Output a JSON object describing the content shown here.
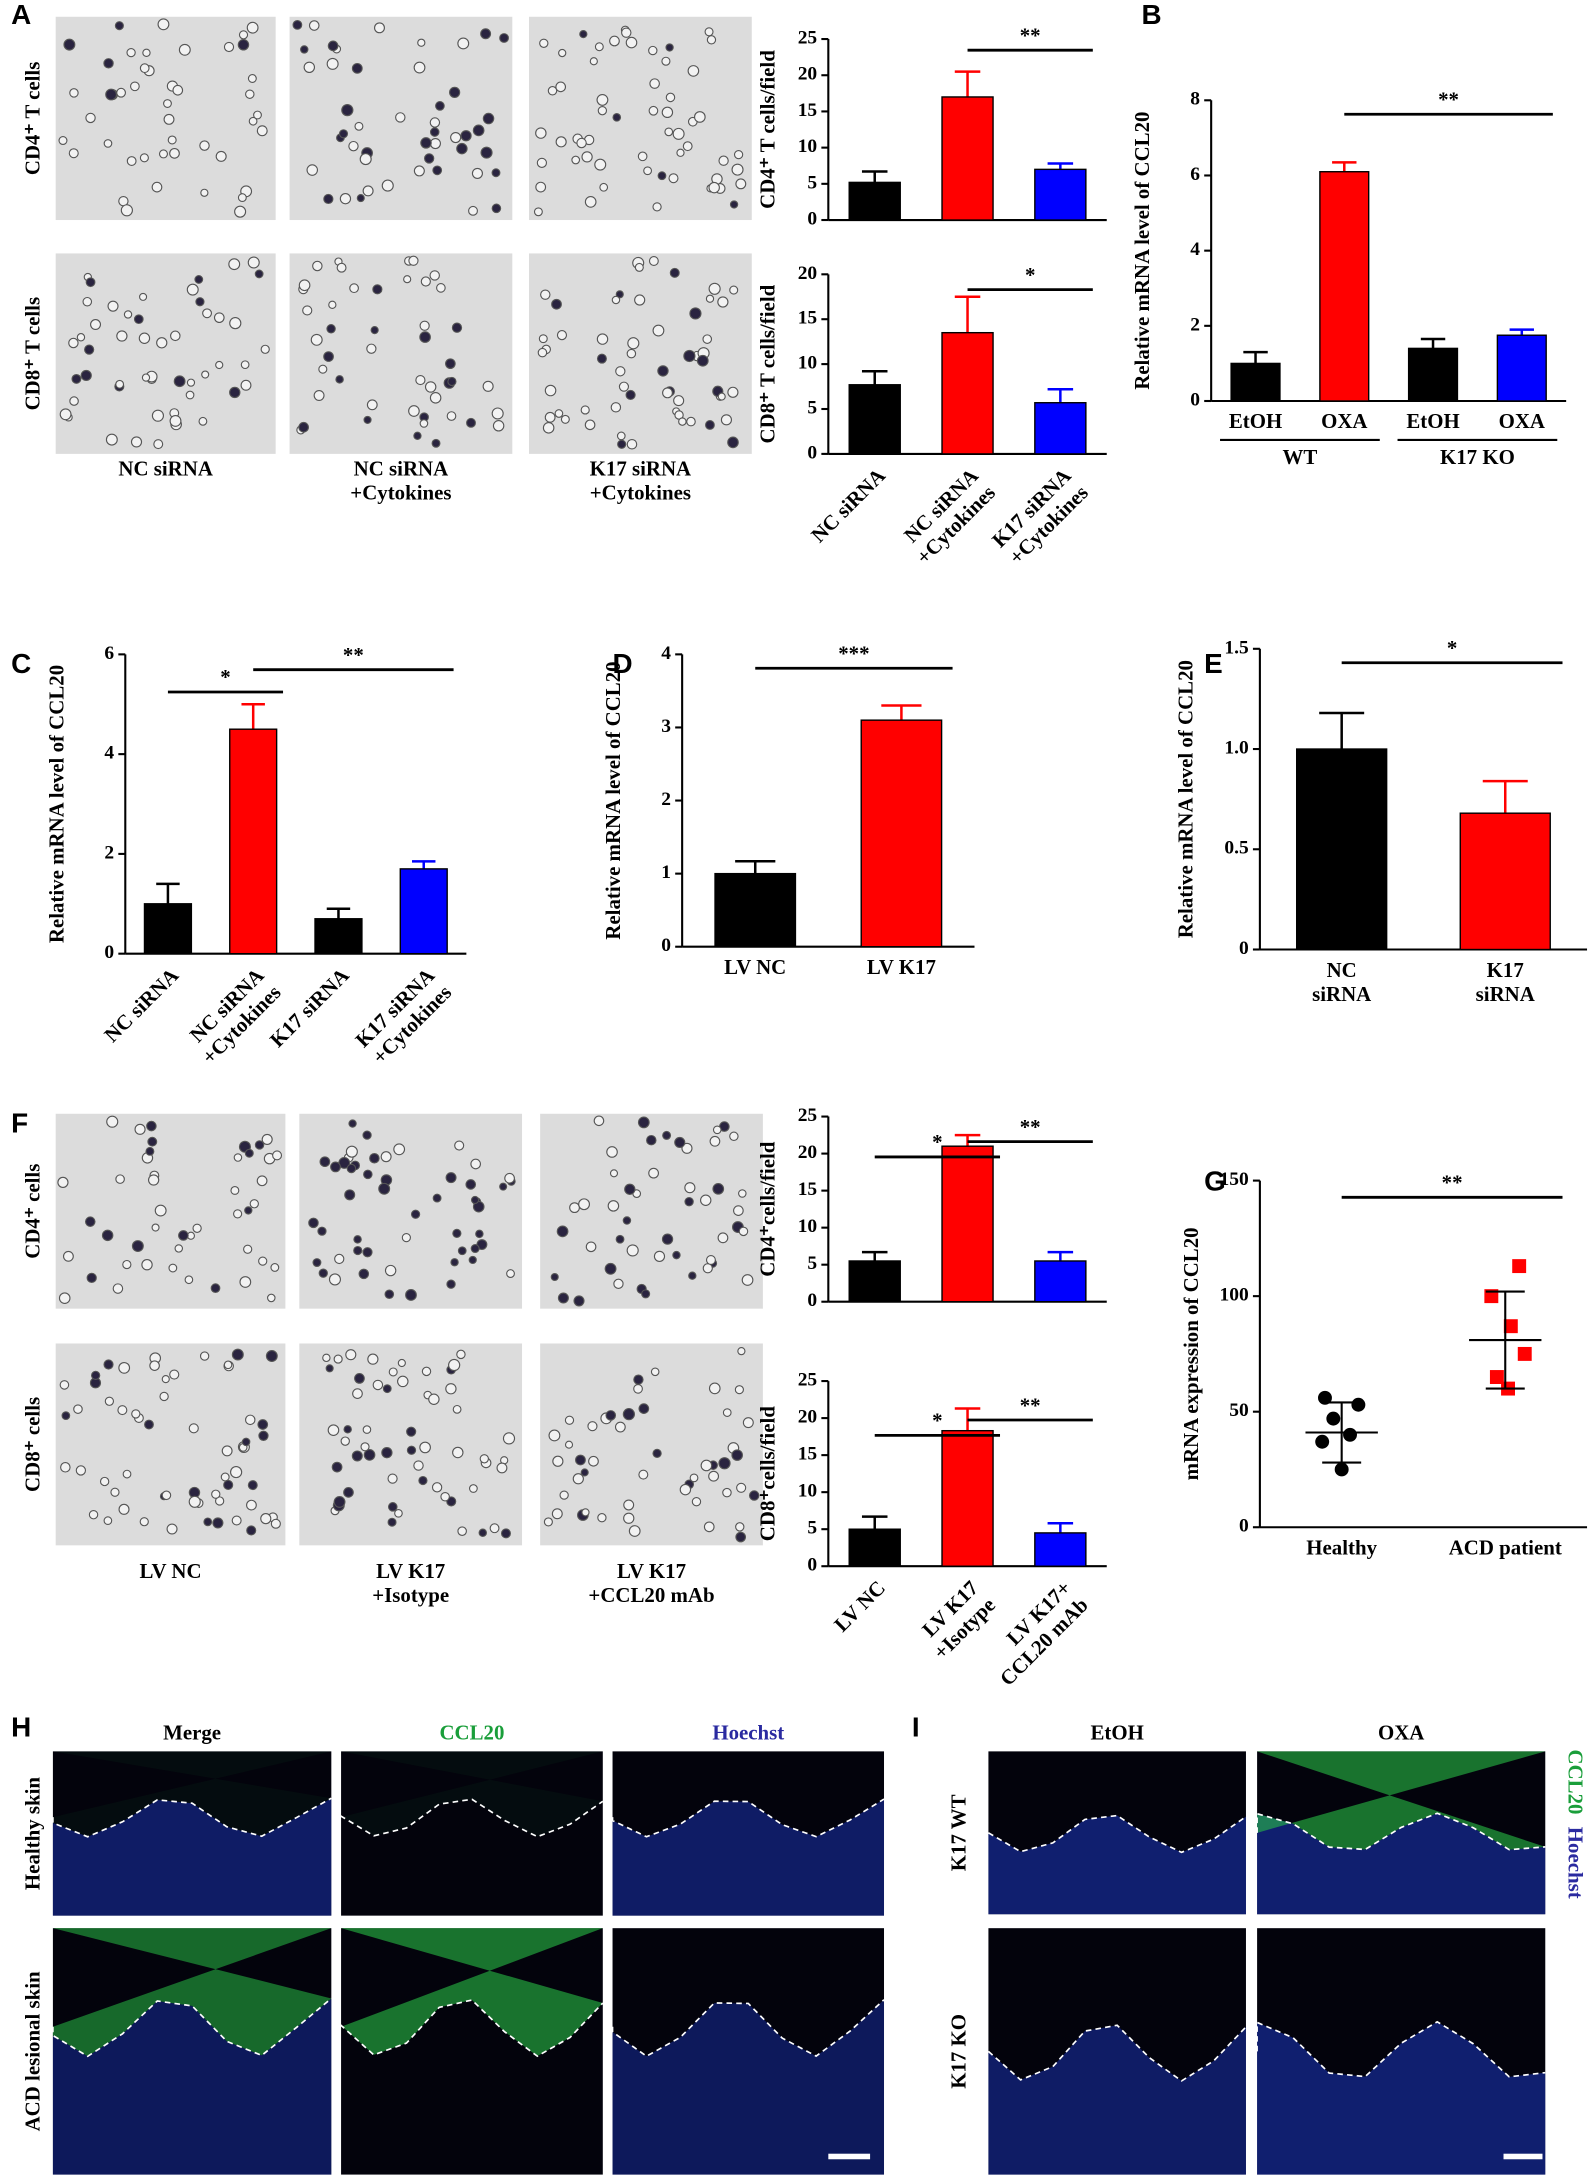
{
  "panels": [
    "A",
    "B",
    "C",
    "D",
    "E",
    "F",
    "G",
    "H",
    "I"
  ],
  "panel_A": {
    "row_labels": [
      "CD4⁺ T cells",
      "CD8⁺ T cells"
    ],
    "column_labels": [
      "NC siRNA",
      "NC siRNA\n+Cytokines",
      "K17 siRNA\n+Cytokines"
    ]
  },
  "panel_F": {
    "row_labels": [
      "CD4⁺ cells",
      "CD8⁺ cells"
    ],
    "column_labels": [
      "LV  NC",
      "LV  K17\n+Isotype",
      "LV  K17\n+CCL20 mAb"
    ]
  },
  "panel_H": {
    "column_labels": [
      "Merge",
      "CCL20",
      "Hoechst"
    ],
    "row_labels": [
      "Healthy skin",
      "ACD lesional skin"
    ]
  },
  "panel_I": {
    "column_labels": [
      "EtOH",
      "OXA"
    ],
    "row_labels": [
      "K17 WT",
      "K17 KO"
    ],
    "channel_labels": [
      "CCL20",
      "Hoechst"
    ]
  },
  "chart_data": [
    {
      "type": "bar",
      "ylabel": "CD4⁺ T cells/field",
      "categories": [
        null,
        null,
        null
      ],
      "values": [
        5.2,
        17,
        7
      ],
      "errors": [
        1.5,
        3.5,
        0.8
      ],
      "colors": [
        "#000000",
        "#ff0000",
        "#0000ff"
      ],
      "ylim": [
        0,
        25
      ],
      "yticks": [
        0,
        5,
        10,
        15,
        20,
        25
      ],
      "annotations": [
        "**"
      ]
    },
    {
      "type": "bar",
      "ylabel": "CD8⁺ T cells/field",
      "categories": [
        "NC siRNA",
        "NC siRNA\n+Cytokines",
        "K17 siRNA\n+Cytokines"
      ],
      "values": [
        7.7,
        13.5,
        5.7
      ],
      "errors": [
        1.5,
        4,
        1.5
      ],
      "colors": [
        "#000000",
        "#ff0000",
        "#0000ff"
      ],
      "ylim": [
        0,
        20
      ],
      "yticks": [
        0,
        5,
        10,
        15,
        20
      ],
      "annotations": [
        "*"
      ]
    },
    {
      "type": "bar",
      "ylabel": "Relative mRNA level of CCL20",
      "categories": [
        "EtOH",
        "OXA",
        "EtOH",
        "OXA"
      ],
      "group_labels": [
        "WT",
        "K17 KO"
      ],
      "values": [
        1.0,
        6.1,
        1.4,
        1.75
      ],
      "errors": [
        0.3,
        0.25,
        0.25,
        0.15
      ],
      "colors": [
        "#000000",
        "#ff0000",
        "#000000",
        "#0000ff"
      ],
      "ylim": [
        0,
        8
      ],
      "yticks": [
        0,
        2,
        4,
        6,
        8
      ],
      "annotations": [
        "**"
      ]
    },
    {
      "type": "bar",
      "ylabel": "Relative mRNA level of CCL20",
      "categories": [
        "NC siRNA",
        "NC siRNA\n+Cytokines",
        "K17 siRNA",
        "K17 siRNA\n+Cytokines"
      ],
      "values": [
        1.0,
        4.5,
        0.7,
        1.7
      ],
      "errors": [
        0.4,
        0.5,
        0.2,
        0.15
      ],
      "colors": [
        "#000000",
        "#ff0000",
        "#000000",
        "#0000ff"
      ],
      "ylim": [
        0,
        6
      ],
      "yticks": [
        0,
        2,
        4,
        6
      ],
      "annotations": [
        "*",
        "**"
      ]
    },
    {
      "type": "bar",
      "ylabel": "Relative mRNA level of CCL20",
      "categories": [
        "LV NC",
        "LV K17"
      ],
      "values": [
        1.0,
        3.1
      ],
      "errors": [
        0.17,
        0.2
      ],
      "colors": [
        "#000000",
        "#ff0000"
      ],
      "ylim": [
        0,
        4
      ],
      "yticks": [
        0,
        1,
        2,
        3,
        4
      ],
      "annotations": [
        "***"
      ]
    },
    {
      "type": "bar",
      "ylabel": "Relative mRNA level of CCL20",
      "categories": [
        "NC\nsiRNA",
        "K17\nsiRNA"
      ],
      "values": [
        1.0,
        0.68
      ],
      "errors": [
        0.18,
        0.16
      ],
      "colors": [
        "#000000",
        "#ff0000"
      ],
      "ylim": [
        0,
        1.5
      ],
      "yticks": [
        0,
        0.5,
        {
          "value": 1,
          "label": "1.0"
        },
        1.5
      ],
      "annotations": [
        "*"
      ]
    },
    {
      "type": "bar",
      "ylabel": "CD4⁺cells/field",
      "categories": [
        null,
        null,
        null
      ],
      "values": [
        5.5,
        21,
        5.5
      ],
      "errors": [
        1.2,
        1.5,
        1.2
      ],
      "colors": [
        "#000000",
        "#ff0000",
        "#0000ff"
      ],
      "ylim": [
        0,
        25
      ],
      "yticks": [
        0,
        5,
        10,
        15,
        20,
        25
      ],
      "annotations": [
        "*",
        "**"
      ]
    },
    {
      "type": "bar",
      "ylabel": "CD8⁺cells/field",
      "categories": [
        "LV NC",
        "LV K17\n+Isotype",
        "LV K17+\nCCL20 mAb"
      ],
      "values": [
        5,
        18.3,
        4.5
      ],
      "errors": [
        1.7,
        3,
        1.3
      ],
      "colors": [
        "#000000",
        "#ff0000",
        "#0000ff"
      ],
      "ylim": [
        0,
        25
      ],
      "yticks": [
        0,
        5,
        10,
        15,
        20,
        25
      ],
      "annotations": [
        "*",
        "**"
      ]
    },
    {
      "type": "dot",
      "ylabel": "mRNA expression of CCL20",
      "categories": [
        "Healthy",
        "ACD patient"
      ],
      "values": [
        [
          56,
          53,
          47,
          40,
          37,
          25
        ],
        [
          113,
          100,
          87,
          75,
          65,
          60
        ]
      ],
      "mean": [
        41,
        81
      ],
      "sd": [
        13,
        21
      ],
      "colors": [
        "#000000",
        "#ff0000"
      ],
      "ylim": [
        0,
        150
      ],
      "yticks": [
        0,
        50,
        100,
        150
      ],
      "annotations": [
        "**"
      ]
    }
  ]
}
